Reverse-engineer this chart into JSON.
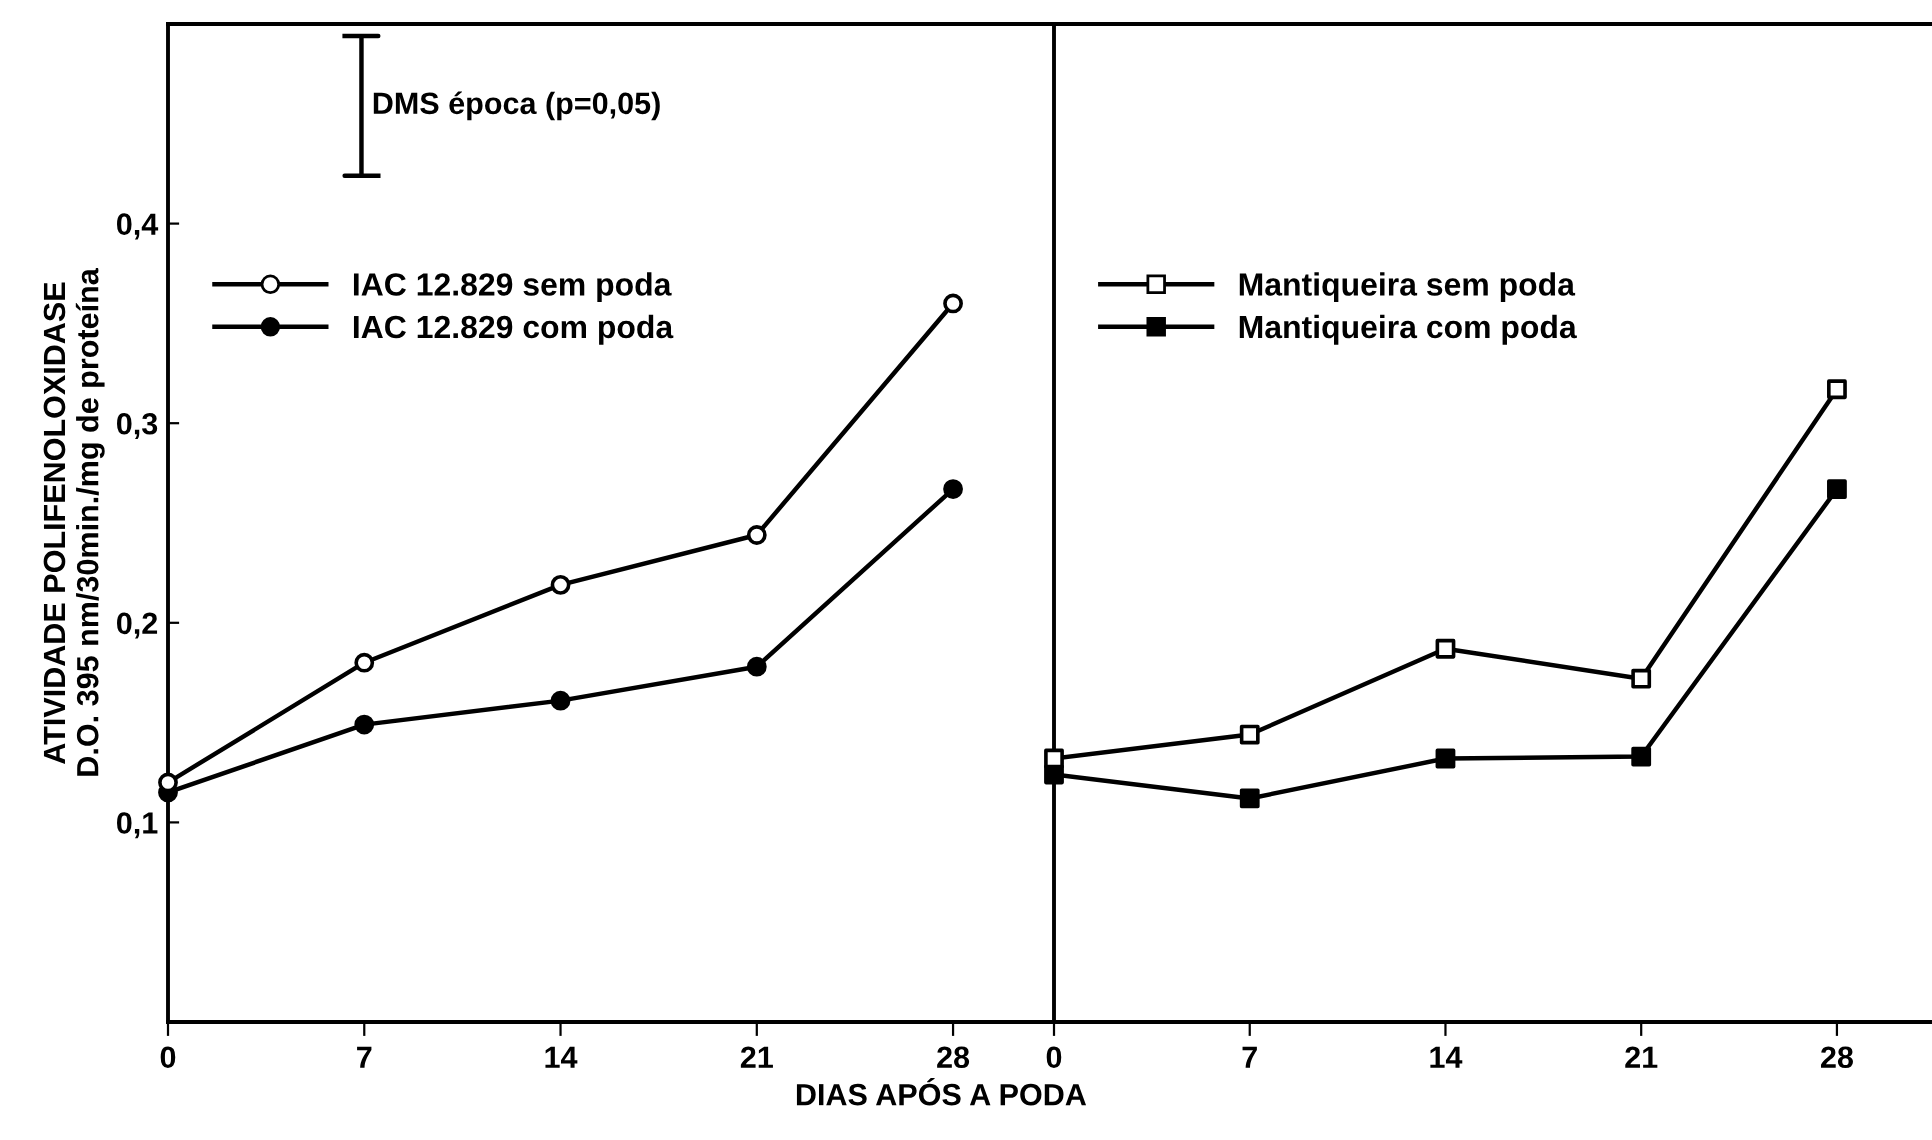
{
  "chart_data": [
    {
      "type": "line",
      "xlabel": "DIAS APÓS A PODA",
      "ylabel": "ATIVIDADE POLIFENOLOXIDASE\nD.O. 395 nm/30min./mg de proteína",
      "x": [
        0,
        7,
        14,
        21,
        28
      ],
      "xlim": [
        0,
        31.6
      ],
      "xticks": [
        0,
        7,
        14,
        21,
        28
      ],
      "ylim": [
        0,
        0.5
      ],
      "yticks": [
        {
          "value": 0,
          "label": null
        },
        {
          "value": 0.1,
          "label": "0,1"
        },
        {
          "value": 0.2,
          "label": "0,2"
        },
        {
          "value": 0.3,
          "label": "0,3"
        },
        {
          "value": 0.4,
          "label": "0,4"
        }
      ],
      "legend": "top left",
      "marker": "circle",
      "line_style": "solid",
      "grid": false,
      "annotations": [
        "DMS época (p=0,05)"
      ],
      "series": [
        {
          "name": "IAC 12.829 sem poda",
          "color": "#000000",
          "colors": [
            "#ffffff",
            "#ffffff",
            "#ffffff",
            "#ffffff",
            "#ffffff"
          ],
          "values": [
            0.12,
            0.18,
            0.219,
            0.244,
            0.36
          ]
        },
        {
          "name": "IAC 12.829 com poda",
          "color": "#000000",
          "colors": [
            "#000000",
            "#000000",
            "#000000",
            "#000000",
            "#000000"
          ],
          "values": [
            0.115,
            0.149,
            0.161,
            0.178,
            0.267
          ]
        },
        {
          "type": "line",
          "marker": "none",
          "color": "#000000",
          "x": [
            6.3,
            7.5,
            6.9,
            6.9,
            6.3,
            7.5
          ],
          "values": [
            0.494,
            0.494,
            0.494,
            0.424,
            0.424,
            0.424
          ]
        }
      ]
    },
    {
      "type": "line",
      "x": [
        0,
        7,
        14,
        21,
        28
      ],
      "xlim": [
        0,
        31.4
      ],
      "xticks": [
        0,
        7,
        14,
        21,
        28
      ],
      "ylim": [
        0,
        0.5
      ],
      "tick_labels": "x",
      "legend": "top left",
      "marker": "square",
      "line_style": "solid",
      "grid": false,
      "series": [
        {
          "name": "Mantiqueira sem poda",
          "color": "#000000",
          "colors": [
            "#ffffff",
            "#ffffff",
            "#ffffff",
            "#ffffff",
            "#ffffff"
          ],
          "values": [
            0.132,
            0.144,
            0.187,
            0.172,
            0.317
          ]
        },
        {
          "name": "Mantiqueira com poda",
          "color": "#000000",
          "colors": [
            "#000000",
            "#000000",
            "#000000",
            "#000000",
            "#000000"
          ],
          "values": [
            0.124,
            0.112,
            0.132,
            0.133,
            0.267
          ]
        }
      ]
    }
  ]
}
